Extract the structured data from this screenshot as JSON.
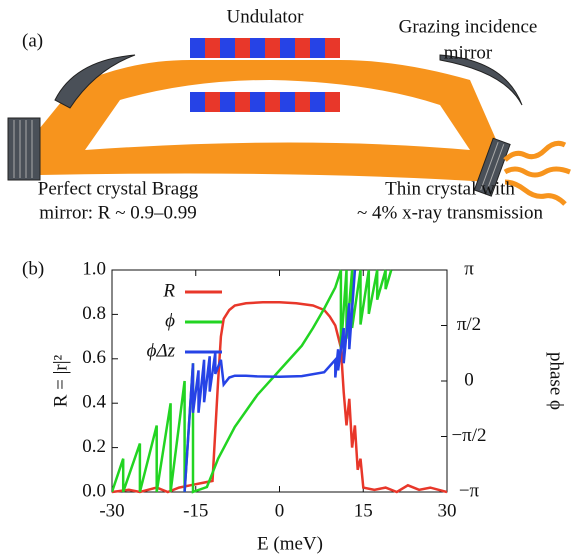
{
  "panel_a": {
    "label": "(a)",
    "undulator": "Undulator",
    "grazing_mirror": [
      "Grazing incidence",
      "mirror"
    ],
    "bragg_mirror": [
      "Perfect crystal Bragg",
      "mirror: R ~ 0.9–0.99"
    ],
    "thin_crystal": [
      "Thin crystal with",
      "~ 4% x-ray transmission"
    ]
  },
  "chart_data": {
    "type": "line",
    "panel_label": "(b)",
    "xlabel": "E (meV)",
    "ylabel": "R = |r|²",
    "y2label": "phase ϕ",
    "xlim": [
      -30,
      30
    ],
    "xticks": [
      -30,
      -15,
      0,
      15,
      30
    ],
    "ylim": [
      0,
      1
    ],
    "yticks": [
      {
        "value": 0,
        "label": "0.0"
      },
      0.2,
      0.4,
      0.6,
      0.8,
      {
        "value": 1,
        "label": "1.0"
      }
    ],
    "y2lim": [
      -3.1416,
      3.1416
    ],
    "y2ticks": [
      {
        "value": -3.1416,
        "label": "−π"
      },
      {
        "value": -1.5708,
        "label": "−π/2"
      },
      0,
      {
        "value": 1.5708,
        "label": "π/2"
      },
      {
        "value": 3.1416,
        "label": "π"
      }
    ],
    "legend": "upper left",
    "series": [
      {
        "name": "R",
        "color": "#e8372a",
        "x": [
          -30,
          -27,
          -25,
          -22,
          -20,
          -18,
          -16,
          -14,
          -12,
          -11,
          -10.5,
          -10,
          -9,
          -8,
          -6,
          -3,
          0,
          3,
          6,
          8,
          9,
          10,
          10.5,
          11,
          11.5,
          12,
          12.5,
          13,
          13.5,
          14,
          14.5,
          15,
          17,
          19,
          21,
          23,
          25,
          27,
          30
        ],
        "values": [
          0,
          0.01,
          0,
          0.02,
          0,
          0.02,
          0.03,
          0.04,
          0.05,
          0.5,
          0.7,
          0.78,
          0.82,
          0.84,
          0.85,
          0.855,
          0.855,
          0.85,
          0.84,
          0.82,
          0.79,
          0.75,
          0.7,
          0.65,
          0.45,
          0.3,
          0.42,
          0.2,
          0.3,
          0.1,
          0.15,
          0.02,
          0.01,
          0.02,
          0,
          0.03,
          0.01,
          0.02,
          0
        ]
      },
      {
        "name": "ϕ",
        "color": "#22d422",
        "axis": "y2",
        "x": [
          -30,
          -28,
          -28,
          -25,
          -25,
          -22,
          -22,
          -19.5,
          -19.5,
          -17,
          -17,
          -15.5,
          -15.5,
          -13,
          -12,
          -11,
          -10,
          -8,
          -6,
          -4,
          -2,
          0,
          2,
          4,
          6,
          8,
          10,
          11,
          11,
          12,
          12,
          13,
          13,
          14.5,
          14.5,
          16,
          16,
          17.5,
          17.5,
          19,
          19,
          20
        ],
        "values": [
          -3.14,
          -2.2,
          -3.14,
          -1.77,
          -3.14,
          -1.26,
          -3.14,
          -0.63,
          -3.14,
          0,
          -3.14,
          0.5,
          -3.14,
          -3.0,
          -2.6,
          -2.2,
          -1.9,
          -1.3,
          -0.85,
          -0.4,
          -0.05,
          0.3,
          0.65,
          1.0,
          1.5,
          2.05,
          2.65,
          3.14,
          0.9,
          3.14,
          1.2,
          3.14,
          1.5,
          3.14,
          1.6,
          3.14,
          1.9,
          3.14,
          2.3,
          3.14,
          2.6,
          3.14
        ]
      },
      {
        "name": "ϕΔz",
        "color": "#2643e6",
        "axis": "y2",
        "x": [
          -17,
          -15.5,
          -15.5,
          -14.5,
          -14.5,
          -13.5,
          -13.5,
          -12.5,
          -12.5,
          -11.5,
          -11.5,
          -10.5,
          -10,
          -9,
          -8,
          -6,
          -4,
          0,
          4,
          8,
          10,
          10,
          10.5,
          10.5,
          11.5,
          11.5,
          12.5,
          12.5,
          13.5
        ],
        "values": [
          -3.14,
          0.5,
          -0.9,
          0.3,
          -0.9,
          0.6,
          -0.6,
          0.7,
          -0.3,
          0.8,
          0.2,
          0.6,
          -0.1,
          0.1,
          0.15,
          0.15,
          0.13,
          0.12,
          0.14,
          0.25,
          0.6,
          0.1,
          0.9,
          0.3,
          1.5,
          0.5,
          2.2,
          0.9,
          3.14
        ]
      }
    ]
  }
}
